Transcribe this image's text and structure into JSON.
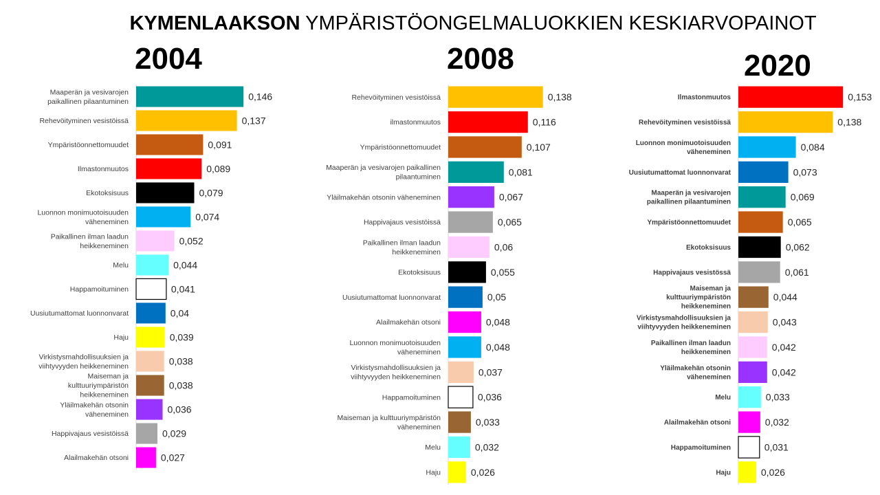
{
  "title": {
    "bold": "KYMENLAAKSON",
    "rest": "YMPÄRISTÖONGELMALUOKKIEN KESKIARVOPAINOT"
  },
  "colors": {
    "teal": "#009999",
    "orange": "#FFC000",
    "brown_orange": "#C55A11",
    "red": "#FF0000",
    "black": "#000000",
    "light_blue": "#00B0F0",
    "light_pink": "#FFCCFF",
    "cyan": "#66FFFF",
    "white": "#FFFFFF",
    "blue": "#0070C0",
    "yellow": "#FFFF00",
    "peach": "#F8CBAD",
    "brown": "#996633",
    "purple": "#9933FF",
    "gray": "#A6A6A6",
    "magenta": "#FF00FF"
  },
  "chart_data": [
    {
      "type": "bar",
      "title": "2004",
      "categories": [
        "Maaperän ja vesivarojen paikallinen pilaantuminen",
        "Rehevöityminen vesistöissä",
        "Ympäristöonnettomuudet",
        "Ilmastonmuutos",
        "Ekotoksisuus",
        "Luonnon monimuotoisuuden väheneminen",
        "Paikallinen ilman laadun heikkeneminen",
        "Melu",
        "Happamoituminen",
        "Uusiutumattomat luonnonvarat",
        "Haju",
        "Virkistysmahdollisuuksien ja viihtyvyyden heikkeneminen",
        "Maiseman ja kulttuuriympäristön heikkeneminen",
        "Yläilmakehän otsonin väheneminen",
        "Happivajaus vesistöissä",
        "Alailmakehän otsoni"
      ],
      "values": [
        0.146,
        0.137,
        0.091,
        0.089,
        0.079,
        0.074,
        0.052,
        0.044,
        0.041,
        0.04,
        0.039,
        0.038,
        0.038,
        0.036,
        0.029,
        0.027
      ],
      "value_labels": [
        "0,146",
        "0,137",
        "0,091",
        "0,089",
        "0,079",
        "0,074",
        "0,052",
        "0,044",
        "0,041",
        "0,04",
        "0,039",
        "0,038",
        "0,038",
        "0,036",
        "0,029",
        "0,027"
      ],
      "colors": [
        "teal",
        "orange",
        "brown_orange",
        "red",
        "black",
        "light_blue",
        "light_pink",
        "cyan",
        "white",
        "blue",
        "yellow",
        "peach",
        "brown",
        "purple",
        "gray",
        "magenta"
      ],
      "xlim": [
        0,
        0.16
      ]
    },
    {
      "type": "bar",
      "title": "2008",
      "categories": [
        "Rehevöityminen vesistöissä",
        "ilmastonmuutos",
        "Ympäristöonnettomuudet",
        "Maaperän ja vesivarojen paikallinen pilaantuminen",
        "Yläilmakehän otsonin väheneminen",
        "Happivajaus vesistöissä",
        "Paikallinen ilman laadun heikkeneminen",
        "Ekotoksisuus",
        "Uusiutumattomat luonnonvarat",
        "Alailmakehän otsoni",
        "Luonnon monimuotoisuuden väheneminen",
        "Virkistysmahdollisuuksien ja viihtyvyyden heikkeneminen",
        "Happamoituminen",
        "Maiseman ja kulttuuriympäristön väheneminen",
        "Melu",
        "Haju"
      ],
      "values": [
        0.138,
        0.116,
        0.107,
        0.081,
        0.067,
        0.065,
        0.06,
        0.055,
        0.05,
        0.048,
        0.048,
        0.037,
        0.036,
        0.033,
        0.032,
        0.026
      ],
      "value_labels": [
        "0,138",
        "0,116",
        "0,107",
        "0,081",
        "0,067",
        "0,065",
        "0,06",
        "0,055",
        "0,05",
        "0,048",
        "0,048",
        "0,037",
        "0,036",
        "0,033",
        "0,032",
        "0,026"
      ],
      "colors": [
        "orange",
        "red",
        "brown_orange",
        "teal",
        "purple",
        "gray",
        "light_pink",
        "black",
        "blue",
        "magenta",
        "light_blue",
        "peach",
        "white",
        "brown",
        "cyan",
        "yellow"
      ],
      "xlim": [
        0,
        0.16
      ]
    },
    {
      "type": "bar",
      "title": "2020",
      "categories": [
        "Ilmastonmuutos",
        "Rehevöityminen vesistöissä",
        "Luonnon monimuotoisuuden väheneminen",
        "Uusiutumattomat luonnonvarat",
        "Maaperän ja vesivarojen paikallinen pilaantuminen",
        "Ympäristöonnettomuudet",
        "Ekotoksisuus",
        "Happivajaus vesistössä",
        "Maiseman ja kulttuuriympäristön heikkeneminen",
        "Virkistysmahdollisuuksien ja viihtyvyyden heikkeneminen",
        "Paikallinen ilman laadun heikkeneminen",
        "Yläilmakehän otsonin väheneminen",
        "Melu",
        "Alailmakehän otsoni",
        "Happamoituminen",
        "Haju"
      ],
      "values": [
        0.153,
        0.138,
        0.084,
        0.073,
        0.069,
        0.065,
        0.062,
        0.061,
        0.044,
        0.043,
        0.042,
        0.042,
        0.033,
        0.032,
        0.031,
        0.026
      ],
      "value_labels": [
        "0,153",
        "0,138",
        "0,084",
        "0,073",
        "0,069",
        "0,065",
        "0,062",
        "0,061",
        "0,044",
        "0,043",
        "0,042",
        "0,042",
        "0,033",
        "0,032",
        "0,031",
        "0,026"
      ],
      "colors": [
        "red",
        "orange",
        "light_blue",
        "blue",
        "teal",
        "brown_orange",
        "black",
        "gray",
        "brown",
        "peach",
        "light_pink",
        "purple",
        "cyan",
        "magenta",
        "white",
        "yellow"
      ],
      "xlim": [
        0,
        0.16
      ]
    }
  ]
}
